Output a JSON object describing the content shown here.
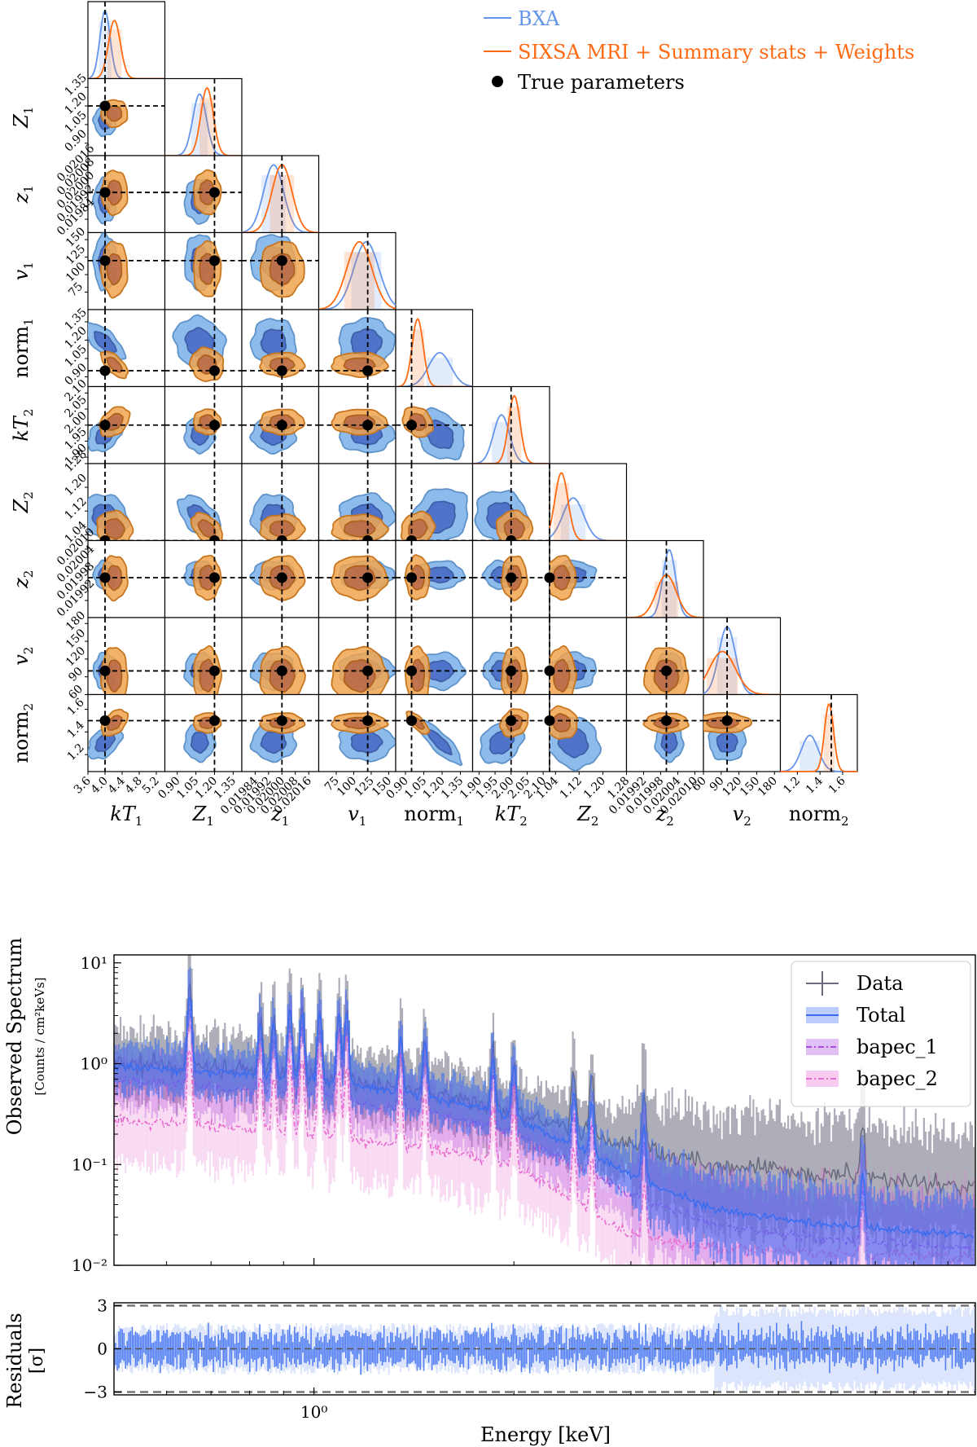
{
  "chart_data": [
    {
      "type": "corner",
      "title": "",
      "parameters": [
        "kT_1",
        "Z_1",
        "z_1",
        "v_1",
        "norm_1",
        "kT_2",
        "Z_2",
        "z_2",
        "v_2",
        "norm_2"
      ],
      "labels": [
        {
          "main": "kT",
          "sub": "1",
          "italic": true
        },
        {
          "main": "Z",
          "sub": "1",
          "italic": true
        },
        {
          "main": "z",
          "sub": "1",
          "italic": true
        },
        {
          "main": "v",
          "sub": "1",
          "italic": true
        },
        {
          "main": "norm",
          "sub": "1",
          "italic": false
        },
        {
          "main": "kT",
          "sub": "2",
          "italic": true
        },
        {
          "main": "Z",
          "sub": "2",
          "italic": true
        },
        {
          "main": "z",
          "sub": "2",
          "italic": true
        },
        {
          "main": "v",
          "sub": "2",
          "italic": true
        },
        {
          "main": "norm",
          "sub": "2",
          "italic": false
        }
      ],
      "ranges": [
        [
          3.6,
          5.4
        ],
        [
          0.8,
          1.42
        ],
        [
          0.01976,
          0.02022
        ],
        [
          50,
          160
        ],
        [
          0.82,
          1.45
        ],
        [
          1.88,
          2.12
        ],
        [
          1.02,
          1.28
        ],
        [
          0.01986,
          0.02013
        ],
        [
          60,
          190
        ],
        [
          1.05,
          1.73
        ]
      ],
      "true_values": [
        4.0,
        1.2,
        0.02,
        120,
        0.95,
        2.0,
        1.02,
        0.02,
        100,
        1.5
      ],
      "ticks": [
        [
          "3.6",
          "4.0",
          "4.4",
          "4.8",
          "5.2"
        ],
        [
          "0.90",
          "1.05",
          "1.20",
          "1.35"
        ],
        [
          "0.01984",
          "0.01992",
          "0.02000",
          "0.02008",
          "0.02016"
        ],
        [
          "75",
          "100",
          "125",
          "150"
        ],
        [
          "0.90",
          "1.05",
          "1.20",
          "1.35"
        ],
        [
          "1.90",
          "1.95",
          "2.00",
          "2.05",
          "2.10"
        ],
        [
          "1.04",
          "1.12",
          "1.20",
          "1.28"
        ],
        [
          "0.01992",
          "0.01998",
          "0.02004",
          "0.02010"
        ],
        [
          "60",
          "90",
          "120",
          "150",
          "180"
        ],
        [
          "1.2",
          "1.4",
          "1.6"
        ]
      ],
      "bxa_mean": [
        4.0,
        1.08,
        0.01995,
        118,
        1.18,
        1.97,
        1.1,
        0.02001,
        100,
        1.31
      ],
      "bxa_sd": [
        0.12,
        0.055,
        6e-05,
        18,
        0.09,
        0.025,
        0.035,
        2.2e-05,
        14,
        0.075
      ],
      "sixsa_mean": [
        4.22,
        1.14,
        0.02,
        108,
        1.0,
        2.01,
        1.06,
        0.02,
        92,
        1.48
      ],
      "sixsa_sd": [
        0.14,
        0.05,
        6e-05,
        18,
        0.045,
        0.018,
        0.022,
        3.5e-05,
        22,
        0.04
      ],
      "legend": [
        {
          "label": "BXA",
          "color": "#6495ed"
        },
        {
          "label": "SIXSA MRI + Summary stats + Weights",
          "color": "#ff6a13"
        },
        {
          "label": "True parameters",
          "color": "#000000"
        }
      ]
    },
    {
      "type": "line",
      "title": "",
      "xlabel": "Energy [keV]",
      "ylabel": "Observed Spectrum",
      "yunit": "[Counts / cm²keVs]",
      "xscale": "log",
      "yscale": "log",
      "xlim": [
        0.5,
        9.9
      ],
      "ylim": [
        0.01,
        12
      ],
      "yticks": [
        "10⁻²",
        "10⁻¹",
        "10⁰",
        "10¹"
      ],
      "xticks": [
        "10⁰"
      ],
      "line_energies_keV": [
        0.65,
        0.83,
        0.87,
        0.92,
        0.96,
        1.02,
        1.09,
        1.12,
        1.35,
        1.47,
        1.86,
        2.0,
        2.46,
        2.62,
        3.14,
        6.7
      ],
      "series": [
        {
          "name": "Data",
          "color": "#6b6b80",
          "continuum": [
            [
              0.5,
              1.0
            ],
            [
              0.7,
              0.9
            ],
            [
              1.0,
              0.75
            ],
            [
              1.5,
              0.5
            ],
            [
              2.0,
              0.33
            ],
            [
              3.0,
              0.15
            ],
            [
              4.0,
              0.1
            ],
            [
              6.0,
              0.08
            ],
            [
              9.9,
              0.06
            ]
          ]
        },
        {
          "name": "Total",
          "color": "#3b6df0",
          "continuum": [
            [
              0.5,
              0.95
            ],
            [
              0.7,
              0.82
            ],
            [
              1.0,
              0.7
            ],
            [
              1.5,
              0.47
            ],
            [
              2.0,
              0.3
            ],
            [
              3.0,
              0.08
            ],
            [
              4.0,
              0.035
            ],
            [
              6.0,
              0.025
            ],
            [
              9.9,
              0.02
            ]
          ]
        },
        {
          "name": "bapec_1",
          "color": "#a84ce0",
          "continuum": [
            [
              0.5,
              0.7
            ],
            [
              0.7,
              0.58
            ],
            [
              1.0,
              0.48
            ],
            [
              1.5,
              0.33
            ],
            [
              2.0,
              0.2
            ],
            [
              3.0,
              0.05
            ],
            [
              4.0,
              0.025
            ],
            [
              6.0,
              0.018
            ],
            [
              9.9,
              0.015
            ]
          ]
        },
        {
          "name": "bapec_2",
          "color": "#e86ad0",
          "continuum": [
            [
              0.5,
              0.28
            ],
            [
              0.7,
              0.24
            ],
            [
              1.0,
              0.2
            ],
            [
              1.5,
              0.14
            ],
            [
              2.0,
              0.1
            ],
            [
              3.0,
              0.02
            ],
            [
              4.0,
              0.015
            ],
            [
              6.0,
              0.013
            ],
            [
              9.9,
              0.012
            ]
          ]
        }
      ],
      "legend": [
        {
          "label": "Data",
          "color": "#6b6b80"
        },
        {
          "label": "Total",
          "color": "#3b6df0"
        },
        {
          "label": "bapec_1",
          "color": "#a84ce0"
        },
        {
          "label": "bapec_2",
          "color": "#e86ad0"
        }
      ]
    },
    {
      "type": "line",
      "title": "",
      "xlabel": "Energy [keV]",
      "ylabel": "Residuals",
      "yunit": "[σ]",
      "xscale": "log",
      "xlim": [
        0.5,
        9.9
      ],
      "ylim": [
        -3.2,
        3.2
      ],
      "yticks": [
        "3",
        "0",
        "−3"
      ],
      "xticks": [
        "10⁰"
      ],
      "reference_lines": [
        3,
        -3
      ],
      "series": [
        {
          "name": "Residuals",
          "color": "#3b6df0",
          "band": [
            -1,
            1
          ]
        }
      ]
    }
  ]
}
